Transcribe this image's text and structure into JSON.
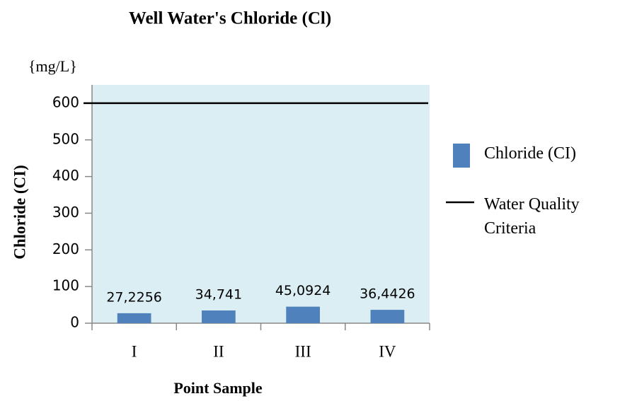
{
  "chart_data": {
    "type": "bar",
    "title": "Well Water's Chloride (Cl)",
    "unit_label": "{mg/L}",
    "x_label": "Point Sample",
    "y_label": "Chloride  (CI)",
    "categories": [
      "I",
      "II",
      "III",
      "IV"
    ],
    "series": [
      {
        "name": "Chloride (CI)",
        "color": "#4f81bd",
        "type": "bar",
        "values": [
          27.2256,
          34.741,
          45.0924,
          36.4426
        ],
        "value_labels": [
          "27,2256",
          "34,741",
          "45,0924",
          "36,4426"
        ]
      },
      {
        "name": "Water Quality Criteria",
        "color": "#000000",
        "type": "line",
        "values": [
          600,
          600,
          600,
          600
        ]
      }
    ],
    "ylim": [
      0,
      650
    ],
    "yticks": [
      0,
      100,
      200,
      300,
      400,
      500,
      600
    ],
    "plot_background": "#daeef3",
    "legend": "right"
  }
}
